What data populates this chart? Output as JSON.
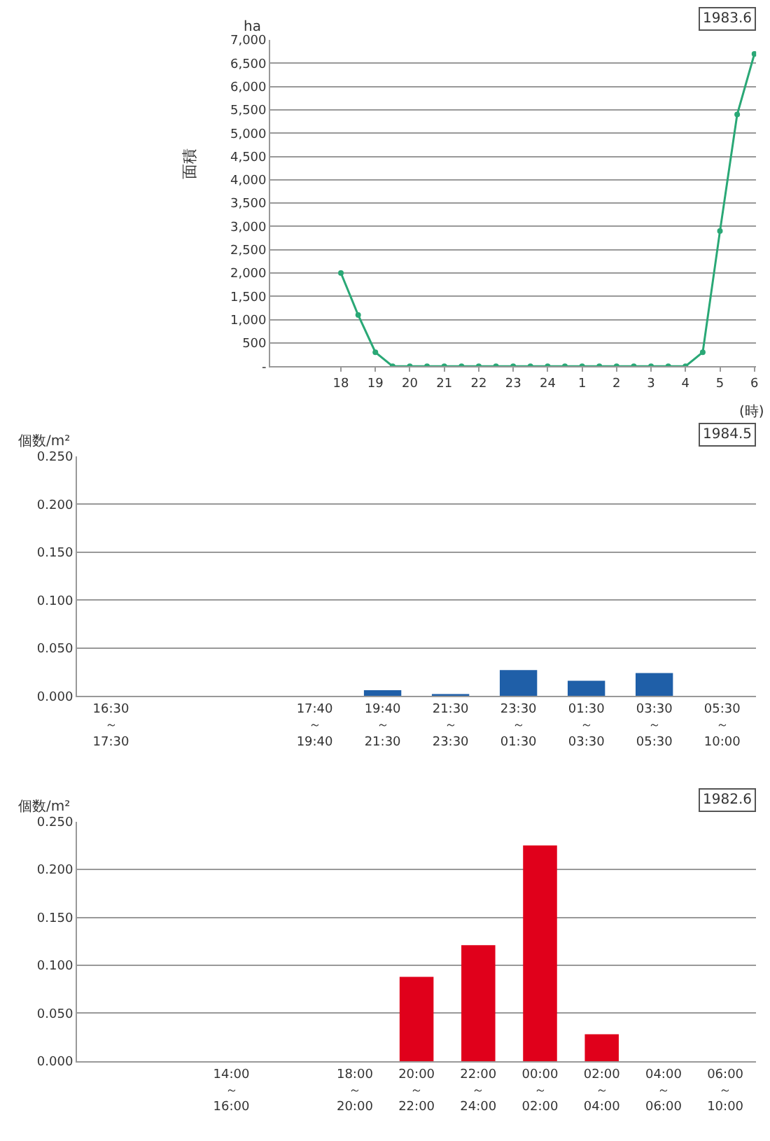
{
  "chart_data": [
    {
      "type": "line",
      "ylabel": "面積",
      "annotations": [
        "ha",
        "(時)",
        "1983.6"
      ],
      "marker": "circle",
      "grid": "y",
      "categories": [
        null,
        null,
        null,
        null,
        "18",
        null,
        "19",
        null,
        "20",
        null,
        "21",
        null,
        "22",
        null,
        "23",
        null,
        "24",
        null,
        "1",
        null,
        "2",
        null,
        "3",
        null,
        "4",
        null,
        "5",
        null,
        "6"
      ],
      "series": [
        {
          "color": "#2aa876",
          "values": [
            null,
            null,
            null,
            null,
            2000,
            1100,
            300,
            0,
            0,
            0,
            0,
            0,
            0,
            0,
            0,
            0,
            0,
            0,
            0,
            0,
            0,
            0,
            0,
            0,
            0,
            300,
            2900,
            5400,
            6700
          ]
        }
      ],
      "ylim": [
        0,
        7000
      ],
      "yticks": [
        {
          "value": 0,
          "label": "-"
        },
        500,
        {
          "value": 1000,
          "label": "1,000"
        },
        {
          "value": 1500,
          "label": "1,500"
        },
        {
          "value": 2000,
          "label": "2,000"
        },
        {
          "value": 2500,
          "label": "2,500"
        },
        {
          "value": 3000,
          "label": "3,000"
        },
        {
          "value": 3500,
          "label": "3,500"
        },
        {
          "value": 4000,
          "label": "4,000"
        },
        {
          "value": 4500,
          "label": "4,500"
        },
        {
          "value": 5000,
          "label": "5,000"
        },
        {
          "value": 5500,
          "label": "5,500"
        },
        {
          "value": 6000,
          "label": "6,000"
        },
        {
          "value": 6500,
          "label": "6,500"
        },
        {
          "value": 7000,
          "label": "7,000"
        }
      ]
    },
    {
      "type": "bar",
      "ylabel": "個数/m²",
      "annotations": [
        "1984.5"
      ],
      "grid": "y",
      "categories": [
        "16:30\n～\n17:30",
        null,
        null,
        "17:40\n～\n19:40",
        "19:40\n～\n21:30",
        "21:30\n～\n23:30",
        "23:30\n～\n01:30",
        "01:30\n～\n03:30",
        "03:30\n～\n05:30",
        "05:30\n～\n10:00"
      ],
      "series": [
        {
          "color": "#1f5fa8",
          "values": [
            0,
            null,
            null,
            0,
            0.006,
            0.002,
            0.027,
            0.016,
            0.024,
            0
          ]
        }
      ],
      "ylim": [
        0,
        0.25
      ],
      "yticks": [
        {
          "value": 0,
          "label": "0.000"
        },
        {
          "value": 0.05,
          "label": "0.050"
        },
        {
          "value": 0.1,
          "label": "0.100"
        },
        {
          "value": 0.15,
          "label": "0.150"
        },
        {
          "value": 0.2,
          "label": "0.200"
        },
        {
          "value": 0.25,
          "label": "0.250"
        }
      ]
    },
    {
      "type": "bar",
      "ylabel": "個数/m²",
      "annotations": [
        "1982.6"
      ],
      "grid": "y",
      "categories": [
        null,
        null,
        "14:00\n～\n16:00",
        null,
        "18:00\n～\n20:00",
        "20:00\n～\n22:00",
        "22:00\n～\n24:00",
        "00:00\n～\n02:00",
        "02:00\n～\n04:00",
        "04:00\n～\n06:00",
        "06:00\n～\n10:00"
      ],
      "series": [
        {
          "color": "#e0001b",
          "values": [
            null,
            null,
            0,
            null,
            0,
            0.088,
            0.121,
            0.225,
            0.028,
            0,
            0
          ]
        }
      ],
      "ylim": [
        0,
        0.25
      ],
      "yticks": [
        {
          "value": 0,
          "label": "0.000"
        },
        {
          "value": 0.05,
          "label": "0.050"
        },
        {
          "value": 0.1,
          "label": "0.100"
        },
        {
          "value": 0.15,
          "label": "0.150"
        },
        {
          "value": 0.2,
          "label": "0.200"
        },
        {
          "value": 0.25,
          "label": "0.250"
        }
      ]
    }
  ]
}
